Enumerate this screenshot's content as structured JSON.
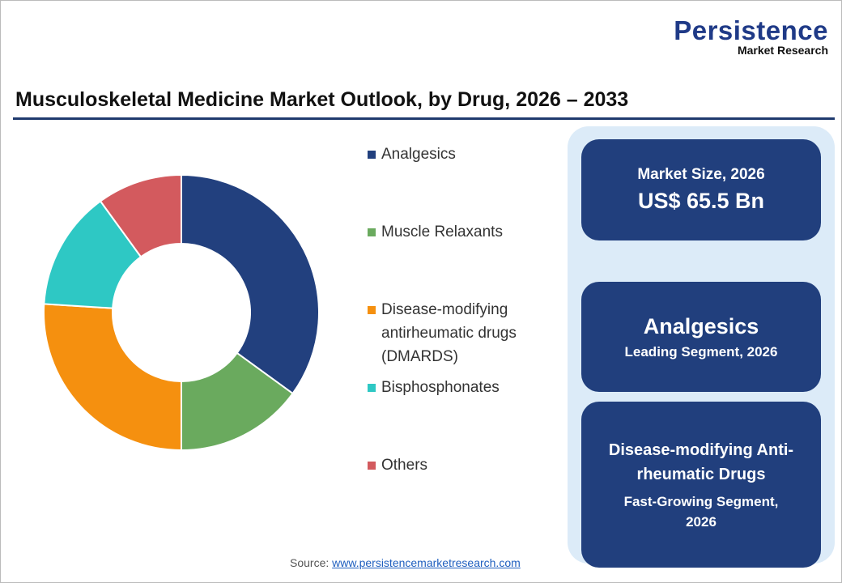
{
  "logo": {
    "line1": "Persistence",
    "line2": "Market Research"
  },
  "title": "Musculoskeletal Medicine Market Outlook, by Drug, 2026 – 2033",
  "chart_data": {
    "type": "pie",
    "donut": true,
    "categories": [
      "Analgesics",
      "Muscle Relaxants",
      "Disease-modifying antirheumatic drugs (DMARDS)",
      "Bisphosphonates",
      "Others"
    ],
    "values": [
      35,
      15,
      26,
      14,
      10
    ],
    "colors": [
      "#22407e",
      "#6aaa5e",
      "#f5900f",
      "#2ec8c4",
      "#d35a5e"
    ],
    "legend_position": "right"
  },
  "legend": [
    {
      "label": "Analgesics"
    },
    {
      "label": "Muscle Relaxants"
    },
    {
      "label": "Disease-modifying antirheumatic drugs (DMARDS)"
    },
    {
      "label": "Bisphosphonates"
    },
    {
      "label": "Others"
    }
  ],
  "cards": {
    "market_size": {
      "label": "Market Size, 2026",
      "value": "US$ 65.5 Bn"
    },
    "leading": {
      "value": "Analgesics",
      "label": "Leading Segment, 2026"
    },
    "fastest": {
      "value": "Disease-modifying Anti-rheumatic Drugs",
      "label": "Fast-Growing Segment, 2026"
    }
  },
  "source": {
    "label": "Source:",
    "link": "www.persistencemarketresearch.com"
  }
}
